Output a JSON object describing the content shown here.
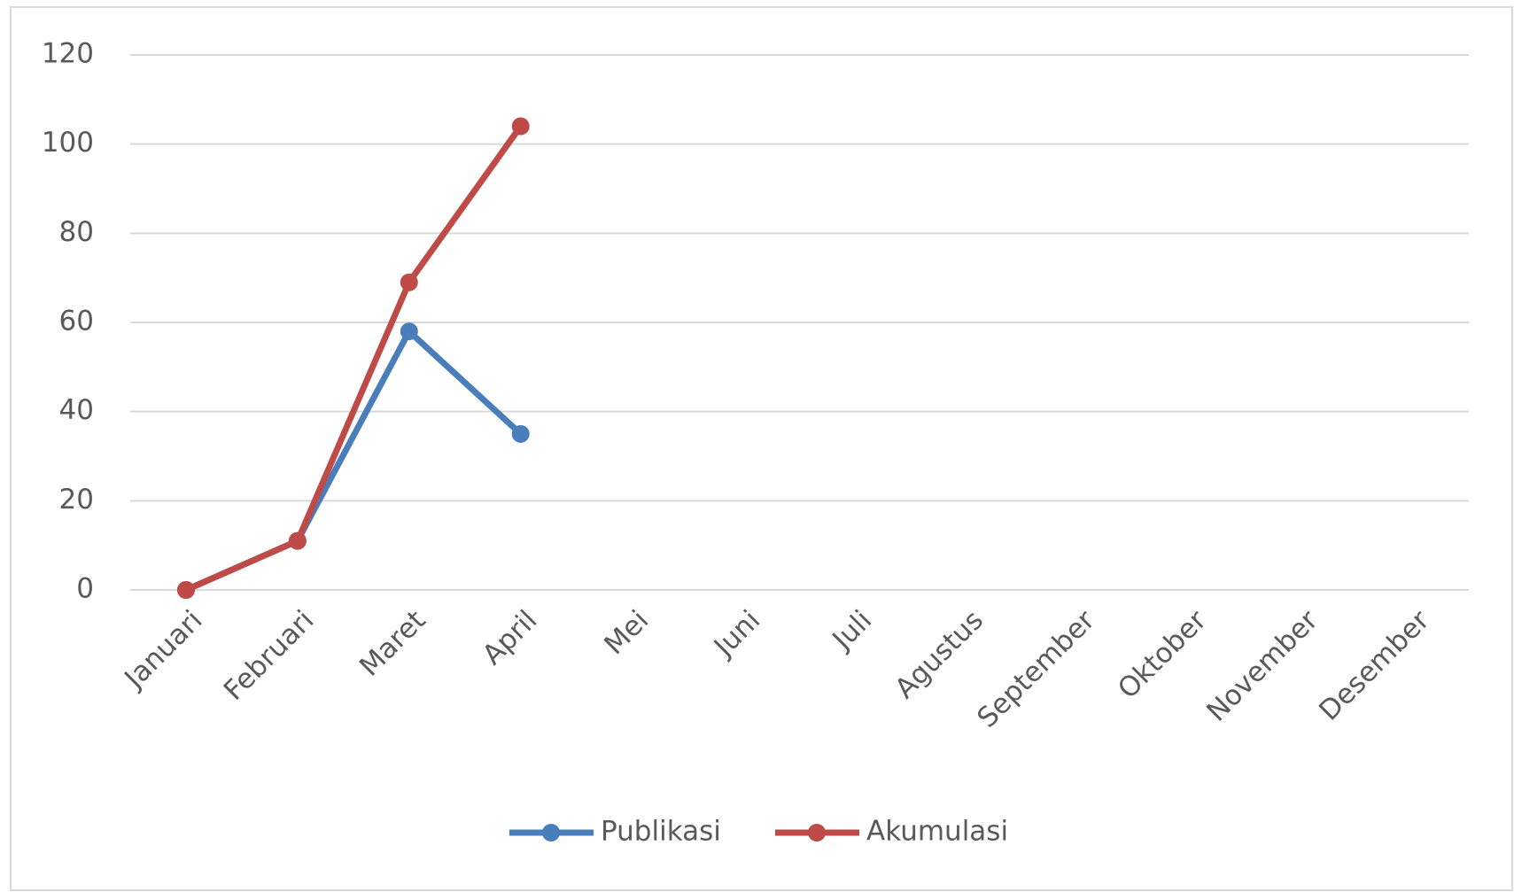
{
  "chart_data": {
    "type": "line",
    "categories": [
      "Januari",
      "Februari",
      "Maret",
      "April",
      "Mei",
      "Juni",
      "Juli",
      "Agustus",
      "September",
      "Oktober",
      "November",
      "Desember"
    ],
    "series": [
      {
        "name": "Publikasi",
        "color": "#4a7ebb",
        "values": [
          0,
          11,
          58,
          35,
          null,
          null,
          null,
          null,
          null,
          null,
          null,
          null
        ]
      },
      {
        "name": "Akumulasi",
        "color": "#be4b48",
        "values": [
          0,
          11,
          69,
          104,
          null,
          null,
          null,
          null,
          null,
          null,
          null,
          null
        ]
      }
    ],
    "ylim": [
      0,
      120
    ],
    "yticks": [
      0,
      20,
      40,
      60,
      80,
      100,
      120
    ],
    "grid": true,
    "legend": "bottom"
  }
}
